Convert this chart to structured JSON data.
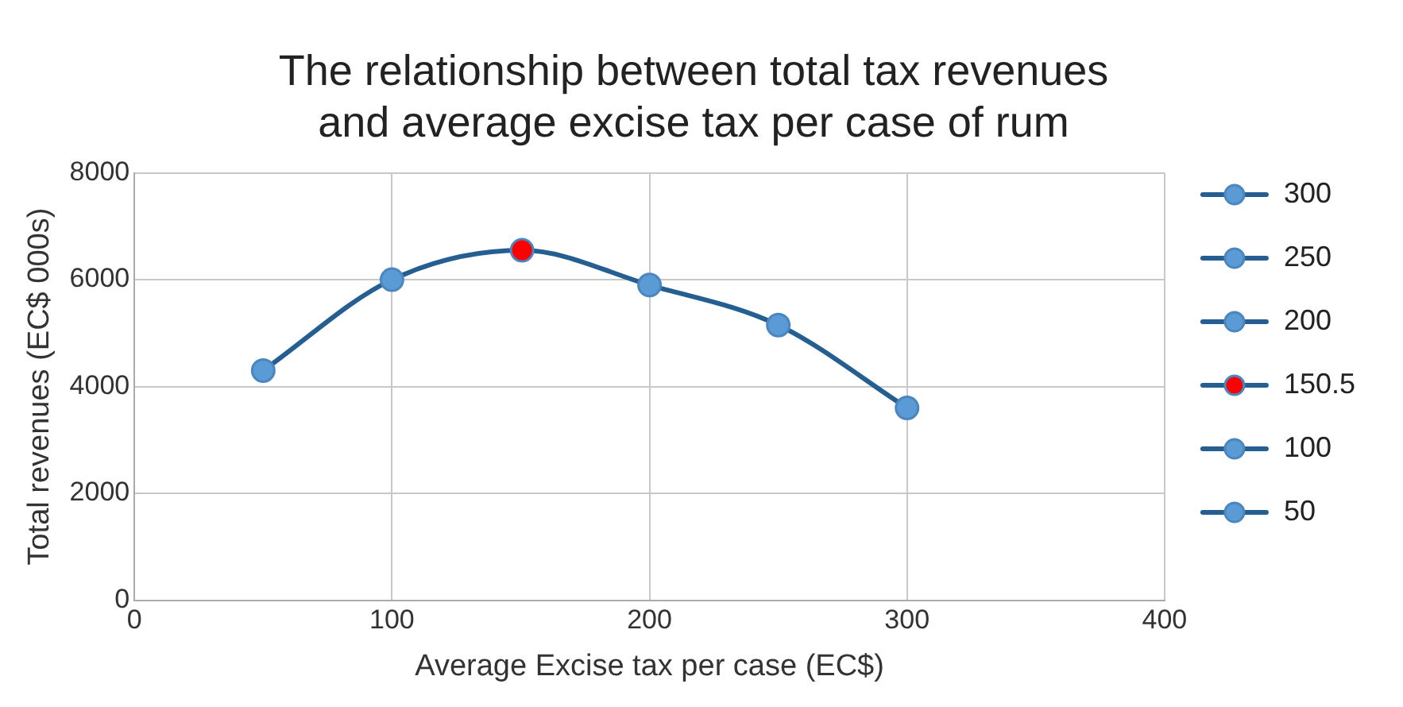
{
  "chart_data": {
    "type": "scatter",
    "title": "The relationship between total tax revenues and average excise tax per case of rum",
    "xlabel": "Average Excise tax per case (EC$)",
    "ylabel": "Total revenues (EC$ 000s)",
    "xlim": [
      0,
      400
    ],
    "xticks": [
      0,
      100,
      200,
      300,
      400
    ],
    "ylim": [
      0,
      8000
    ],
    "yticks": [
      0,
      2000,
      4000,
      6000,
      8000
    ],
    "grid": true,
    "legend": "right",
    "marker": "circle",
    "line_style": "solid",
    "series": [
      {
        "type": "line",
        "color": "#255e91",
        "marker": "none",
        "x": [
          50,
          100,
          150.5,
          200,
          250,
          300
        ],
        "values": [
          4300,
          6000,
          6550,
          5900,
          5150,
          3600
        ]
      },
      {
        "name": "300",
        "color": "#5b9bd5",
        "x": [
          300
        ],
        "values": [
          3600
        ]
      },
      {
        "name": "250",
        "color": "#5b9bd5",
        "x": [
          250
        ],
        "values": [
          5150
        ]
      },
      {
        "name": "200",
        "color": "#5b9bd5",
        "x": [
          200
        ],
        "values": [
          5900
        ]
      },
      {
        "name": "150.5",
        "color": "#ff0000",
        "x": [
          150.5
        ],
        "values": [
          6550
        ]
      },
      {
        "name": "100",
        "color": "#5b9bd5",
        "x": [
          100
        ],
        "values": [
          6000
        ]
      },
      {
        "name": "50",
        "color": "#5b9bd5",
        "x": [
          50
        ],
        "values": [
          4300
        ]
      }
    ]
  }
}
